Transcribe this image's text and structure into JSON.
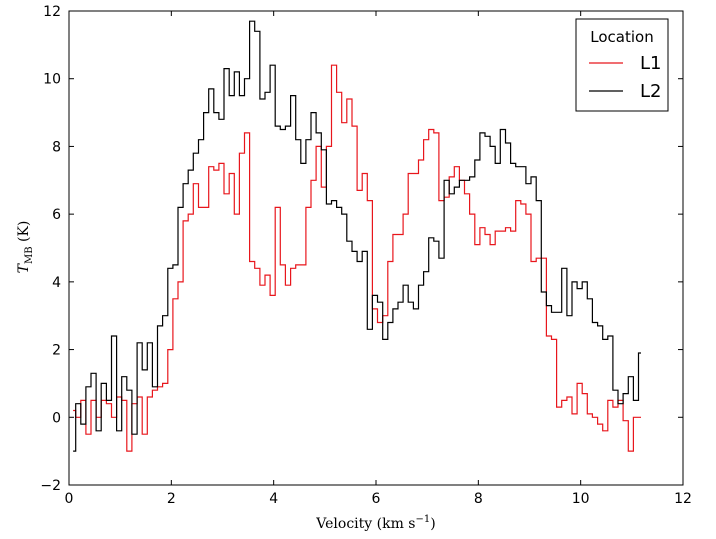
{
  "chart_data": {
    "type": "line",
    "step": true,
    "xlabel_main": "Velocity (km s",
    "xlabel_sup": "−1",
    "xlabel_close": ")",
    "ylabel_main": "T",
    "ylabel_sub": "MB",
    "ylabel_unit": " (K)",
    "xlim": [
      0,
      12
    ],
    "ylim": [
      -2,
      12
    ],
    "xticks": [
      0,
      2,
      4,
      6,
      8,
      10,
      12
    ],
    "xtick_labels": [
      "0",
      "2",
      "4",
      "6",
      "8",
      "10",
      "12"
    ],
    "yticks": [
      -2,
      0,
      2,
      4,
      6,
      8,
      10,
      12
    ],
    "ytick_labels": [
      "−2",
      "0",
      "2",
      "4",
      "6",
      "8",
      "10",
      "12"
    ],
    "grid": false,
    "legend": {
      "title": "Location",
      "position": "top-right"
    },
    "x": [
      0.08,
      0.18,
      0.28,
      0.38,
      0.48,
      0.58,
      0.68,
      0.78,
      0.88,
      0.98,
      1.08,
      1.18,
      1.28,
      1.38,
      1.48,
      1.58,
      1.68,
      1.78,
      1.88,
      1.98,
      2.08,
      2.18,
      2.28,
      2.38,
      2.48,
      2.58,
      2.68,
      2.78,
      2.88,
      2.98,
      3.08,
      3.18,
      3.28,
      3.38,
      3.48,
      3.58,
      3.68,
      3.78,
      3.88,
      3.98,
      4.08,
      4.18,
      4.28,
      4.38,
      4.48,
      4.58,
      4.68,
      4.78,
      4.88,
      4.98,
      5.08,
      5.18,
      5.28,
      5.38,
      5.48,
      5.58,
      5.68,
      5.78,
      5.88,
      5.98,
      6.08,
      6.18,
      6.28,
      6.38,
      6.48,
      6.58,
      6.68,
      6.78,
      6.88,
      6.98,
      7.08,
      7.18,
      7.28,
      7.38,
      7.48,
      7.58,
      7.68,
      7.78,
      7.88,
      7.98,
      8.08,
      8.18,
      8.28,
      8.38,
      8.48,
      8.58,
      8.68,
      8.78,
      8.88,
      8.98,
      9.08,
      9.18,
      9.28,
      9.38,
      9.48,
      9.58,
      9.68,
      9.78,
      9.88,
      9.98,
      10.08,
      10.18,
      10.28,
      10.38,
      10.48,
      10.58,
      10.68,
      10.78,
      10.88,
      10.98,
      11.08,
      11.18
    ],
    "series": [
      {
        "name": "L1",
        "color": "#e8161c",
        "values": [
          0.2,
          0.0,
          0.5,
          -0.5,
          0.5,
          0.0,
          0.5,
          0.4,
          0.0,
          0.6,
          0.5,
          -1.0,
          0.4,
          0.6,
          -0.5,
          0.6,
          0.8,
          0.9,
          1.0,
          2.0,
          3.5,
          4.0,
          5.8,
          6.0,
          6.9,
          6.2,
          6.2,
          7.4,
          7.3,
          7.5,
          6.6,
          7.2,
          6.0,
          7.8,
          8.4,
          4.6,
          4.4,
          3.9,
          4.2,
          3.6,
          6.2,
          4.5,
          3.9,
          4.4,
          4.5,
          4.5,
          6.2,
          7.0,
          8.0,
          6.8,
          8.0,
          10.4,
          9.6,
          8.7,
          9.4,
          8.6,
          6.7,
          7.2,
          6.4,
          3.2,
          2.8,
          3.0,
          4.6,
          5.4,
          5.4,
          6.0,
          7.2,
          7.2,
          7.6,
          8.2,
          8.5,
          8.4,
          6.4,
          6.5,
          7.1,
          7.4,
          7.0,
          6.6,
          6.0,
          5.1,
          5.6,
          5.4,
          5.1,
          5.5,
          5.5,
          5.6,
          5.5,
          6.4,
          6.3,
          6.0,
          4.6,
          4.7,
          4.7,
          2.4,
          2.3,
          0.3,
          0.5,
          0.6,
          0.1,
          1.0,
          0.7,
          0.1,
          0.0,
          -0.2,
          -0.4,
          0.5,
          0.3,
          0.5,
          -0.1,
          -1.0,
          0.0,
          0.0
        ]
      },
      {
        "name": "L2",
        "color": "#000000",
        "values": [
          -1.0,
          0.4,
          -0.2,
          0.9,
          1.3,
          -0.4,
          1.0,
          0.5,
          2.4,
          -0.4,
          1.2,
          0.8,
          -0.5,
          2.2,
          1.4,
          2.2,
          0.9,
          2.7,
          3.0,
          4.4,
          4.5,
          6.2,
          6.9,
          7.3,
          7.8,
          8.2,
          9.0,
          9.7,
          9.0,
          8.8,
          10.3,
          9.5,
          10.2,
          9.5,
          10.0,
          11.7,
          11.4,
          9.4,
          9.6,
          10.4,
          8.6,
          8.5,
          8.6,
          9.5,
          8.2,
          7.5,
          8.2,
          9.0,
          8.4,
          7.9,
          6.3,
          6.4,
          6.2,
          6.0,
          5.2,
          4.9,
          4.6,
          4.9,
          2.6,
          3.6,
          3.4,
          2.3,
          2.8,
          3.2,
          3.4,
          3.9,
          3.4,
          3.2,
          3.9,
          4.3,
          5.3,
          5.2,
          4.7,
          7.0,
          6.6,
          6.8,
          7.0,
          7.0,
          7.1,
          7.6,
          8.4,
          8.3,
          8.0,
          7.5,
          8.5,
          8.1,
          7.5,
          7.4,
          7.4,
          6.9,
          7.1,
          6.4,
          3.7,
          3.3,
          3.1,
          3.1,
          4.4,
          3.0,
          4.0,
          3.8,
          4.0,
          3.5,
          2.8,
          2.7,
          2.3,
          2.4,
          0.8,
          0.4,
          0.7,
          1.2,
          0.5,
          1.9
        ]
      }
    ]
  }
}
